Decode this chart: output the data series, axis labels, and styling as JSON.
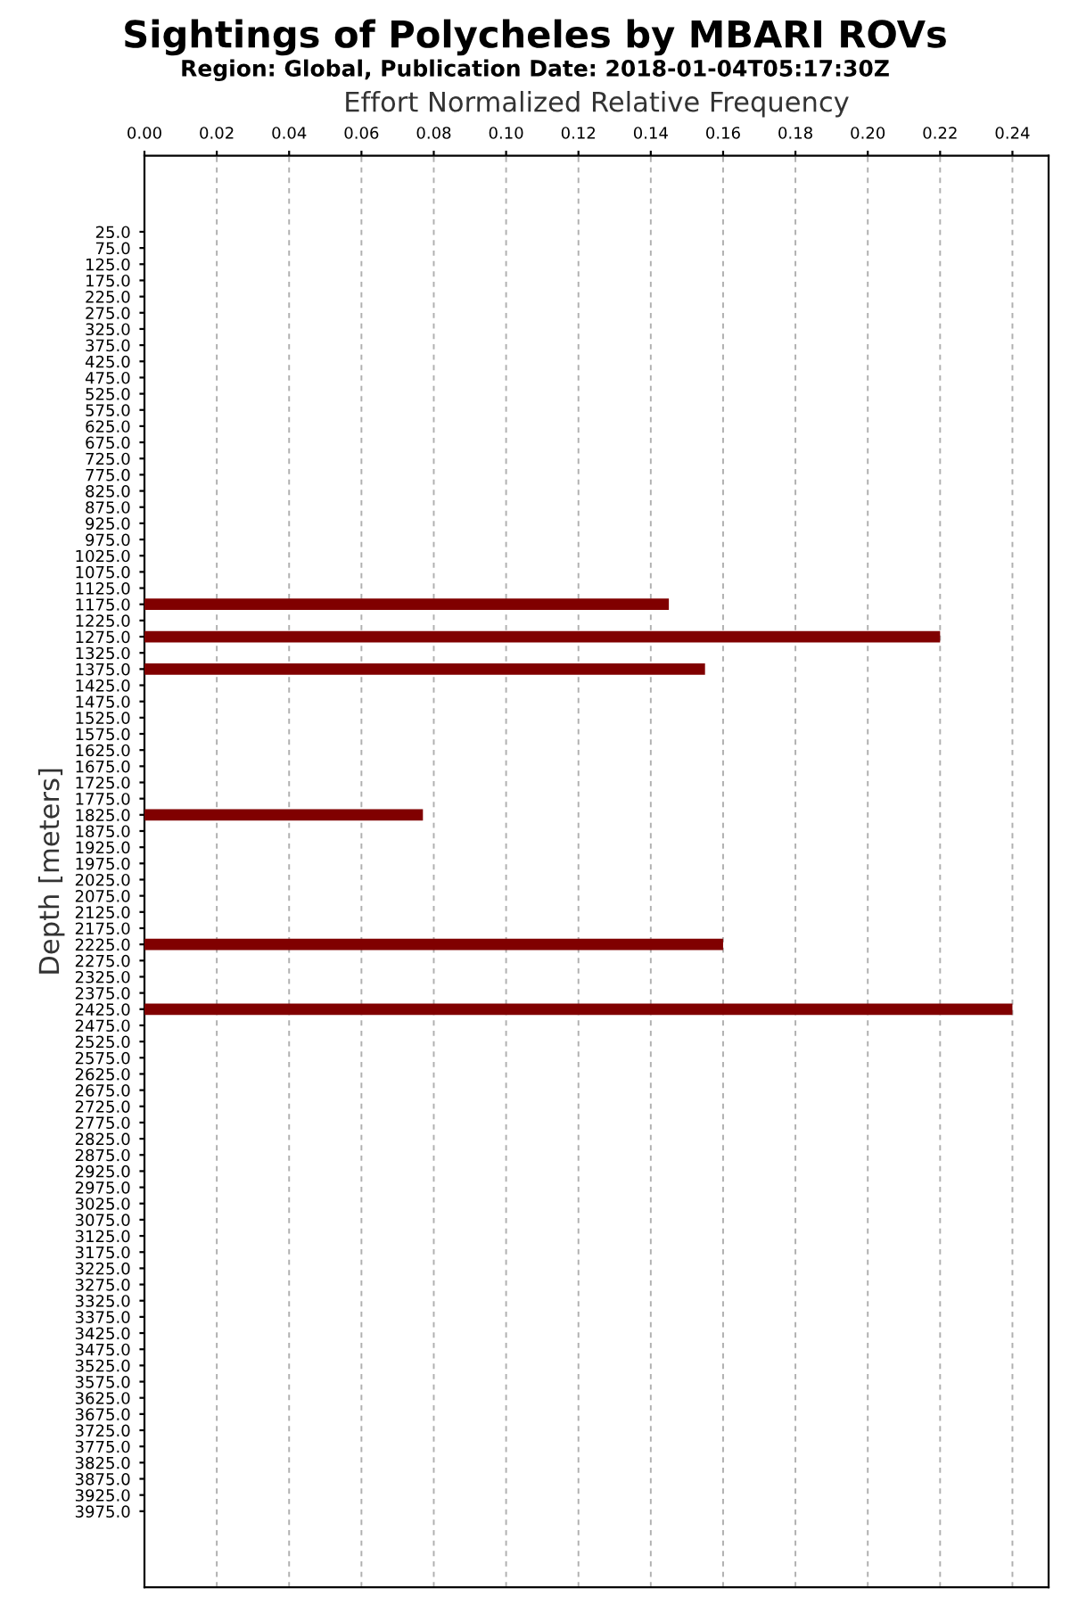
{
  "chart_data": {
    "type": "bar",
    "orientation": "horizontal",
    "title": "Sightings of Polycheles by MBARI ROVs",
    "subtitle": "Region: Global, Publication Date: 2018-01-04T05:17:30Z",
    "xlabel": "Effort Normalized Relative Frequency",
    "ylabel": "Depth [meters]",
    "categories": [
      "25.0",
      "75.0",
      "125.0",
      "175.0",
      "225.0",
      "275.0",
      "325.0",
      "375.0",
      "425.0",
      "475.0",
      "525.0",
      "575.0",
      "625.0",
      "675.0",
      "725.0",
      "775.0",
      "825.0",
      "875.0",
      "925.0",
      "975.0",
      "1025.0",
      "1075.0",
      "1125.0",
      "1175.0",
      "1225.0",
      "1275.0",
      "1325.0",
      "1375.0",
      "1425.0",
      "1475.0",
      "1525.0",
      "1575.0",
      "1625.0",
      "1675.0",
      "1725.0",
      "1775.0",
      "1825.0",
      "1875.0",
      "1925.0",
      "1975.0",
      "2025.0",
      "2075.0",
      "2125.0",
      "2175.0",
      "2225.0",
      "2275.0",
      "2325.0",
      "2375.0",
      "2425.0",
      "2475.0",
      "2525.0",
      "2575.0",
      "2625.0",
      "2675.0",
      "2725.0",
      "2775.0",
      "2825.0",
      "2875.0",
      "2925.0",
      "2975.0",
      "3025.0",
      "3075.0",
      "3125.0",
      "3175.0",
      "3225.0",
      "3275.0",
      "3325.0",
      "3375.0",
      "3425.0",
      "3475.0",
      "3525.0",
      "3575.0",
      "3625.0",
      "3675.0",
      "3725.0",
      "3775.0",
      "3825.0",
      "3875.0",
      "3925.0",
      "3975.0"
    ],
    "values": [
      0,
      0,
      0,
      0,
      0,
      0,
      0,
      0,
      0,
      0,
      0,
      0,
      0,
      0,
      0,
      0,
      0,
      0,
      0,
      0,
      0,
      0,
      0,
      0.145,
      0,
      0.22,
      0,
      0.155,
      0,
      0,
      0,
      0,
      0,
      0,
      0,
      0,
      0.077,
      0,
      0,
      0,
      0,
      0,
      0,
      0,
      0.16,
      0,
      0,
      0,
      0.24,
      0,
      0,
      0,
      0,
      0,
      0,
      0,
      0,
      0,
      0,
      0,
      0,
      0,
      0,
      0,
      0,
      0,
      0,
      0,
      0,
      0,
      0,
      0,
      0,
      0,
      0,
      0,
      0,
      0,
      0,
      0
    ],
    "color": "#800000",
    "xlim": [
      0,
      0.25
    ],
    "xticks": [
      {
        "value": 0,
        "label": "0.00"
      },
      {
        "value": 0.02,
        "label": "0.02"
      },
      {
        "value": 0.04,
        "label": "0.04"
      },
      {
        "value": 0.06,
        "label": "0.06"
      },
      {
        "value": 0.08,
        "label": "0.08"
      },
      {
        "value": 0.1,
        "label": "0.10"
      },
      {
        "value": 0.12,
        "label": "0.12"
      },
      {
        "value": 0.14,
        "label": "0.14"
      },
      {
        "value": 0.16,
        "label": "0.16"
      },
      {
        "value": 0.18,
        "label": "0.18"
      },
      {
        "value": 0.2,
        "label": "0.20"
      },
      {
        "value": 0.22,
        "label": "0.22"
      },
      {
        "value": 0.24,
        "label": "0.24"
      }
    ],
    "grid": "x",
    "legend": false
  }
}
